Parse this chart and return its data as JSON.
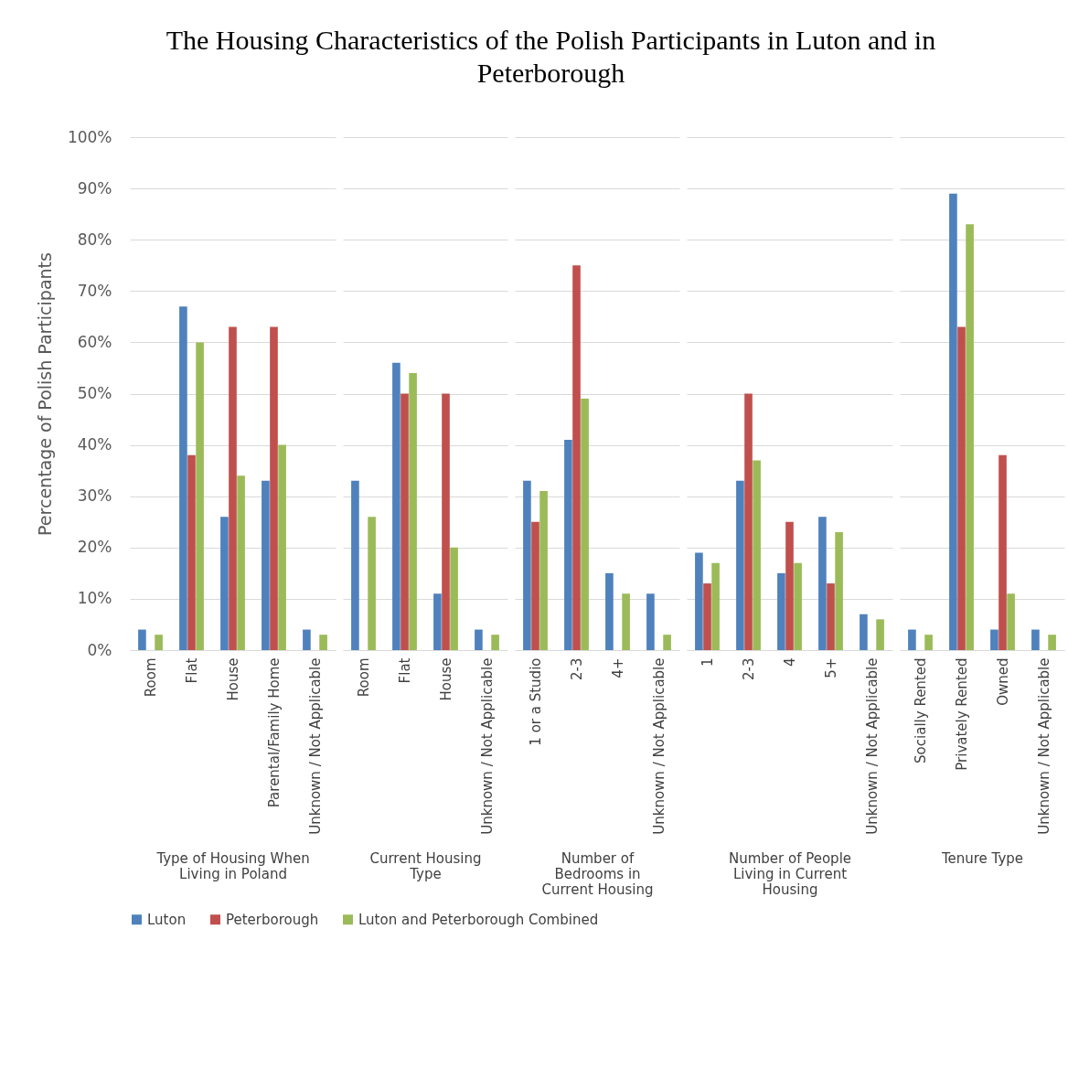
{
  "chart_data": [
    {
      "type": "bar",
      "title": "The Housing Characteristics of the Polish Participants in Luton and in Peterborough",
      "xlabel": "Type of Housing When Living in Poland",
      "ylabel": "Percentage of Polish Participants",
      "categories": [
        "Room",
        "Flat",
        "House",
        "Parental/Family Home",
        "Unknown / Not Applicable"
      ],
      "series": [
        {
          "name": "Luton",
          "color": "#4f81bd",
          "values": [
            4,
            67,
            26,
            33,
            4
          ]
        },
        {
          "name": "Peterborough",
          "color": "#c0504d",
          "values": [
            0,
            38,
            63,
            63,
            0
          ]
        },
        {
          "name": "Luton and Peterborough Combined",
          "color": "#9bbb59",
          "values": [
            3,
            60,
            34,
            40,
            3
          ]
        }
      ],
      "ylim": [
        0,
        100
      ],
      "yticks": [
        {
          "value": 0,
          "label": "0%"
        },
        {
          "value": 10,
          "label": "10%"
        },
        {
          "value": 20,
          "label": "20%"
        },
        {
          "value": 30,
          "label": "30%"
        },
        {
          "value": 40,
          "label": "40%"
        },
        {
          "value": 50,
          "label": "50%"
        },
        {
          "value": 60,
          "label": "60%"
        },
        {
          "value": 70,
          "label": "70%"
        },
        {
          "value": 80,
          "label": "80%"
        },
        {
          "value": 90,
          "label": "90%"
        },
        {
          "value": 100,
          "label": "100%"
        }
      ],
      "grid": "y",
      "legend": "bottom"
    },
    {
      "type": "bar",
      "xlabel": "Current Housing Type",
      "categories": [
        "Room",
        "Flat",
        "House",
        "Unknown / Not Applicable"
      ],
      "series": [
        {
          "color": "#4f81bd",
          "values": [
            33,
            56,
            11,
            4
          ]
        },
        {
          "color": "#c0504d",
          "values": [
            0,
            50,
            50,
            0
          ]
        },
        {
          "color": "#9bbb59",
          "values": [
            26,
            54,
            20,
            3
          ]
        }
      ],
      "ylim": [
        0,
        100
      ],
      "grid": "y",
      "tick_labels": "x"
    },
    {
      "type": "bar",
      "xlabel": "Number of Bedrooms in Current Housing",
      "categories": [
        "1 or a Studio",
        "2-3",
        "4+",
        "Unknown / Not Applicable"
      ],
      "series": [
        {
          "color": "#4f81bd",
          "values": [
            33,
            41,
            15,
            11
          ]
        },
        {
          "color": "#c0504d",
          "values": [
            25,
            75,
            0,
            0
          ]
        },
        {
          "color": "#9bbb59",
          "values": [
            31,
            49,
            11,
            3
          ]
        }
      ],
      "ylim": [
        0,
        100
      ],
      "grid": "y",
      "tick_labels": "x"
    },
    {
      "type": "bar",
      "xlabel": "Number of People Living in Current Housing",
      "categories": [
        "1",
        "2-3",
        "4",
        "5+",
        "Unknown / Not Applicable"
      ],
      "series": [
        {
          "color": "#4f81bd",
          "values": [
            19,
            33,
            15,
            26,
            7
          ]
        },
        {
          "color": "#c0504d",
          "values": [
            13,
            50,
            25,
            13,
            0
          ]
        },
        {
          "color": "#9bbb59",
          "values": [
            17,
            37,
            17,
            23,
            6
          ]
        }
      ],
      "ylim": [
        0,
        100
      ],
      "grid": "y",
      "tick_labels": "x"
    },
    {
      "type": "bar",
      "xlabel": "Tenure Type",
      "categories": [
        "Socially Rented",
        "Privately Rented",
        "Owned",
        "Unknown / Not Applicable"
      ],
      "series": [
        {
          "color": "#4f81bd",
          "values": [
            4,
            89,
            4,
            4
          ]
        },
        {
          "color": "#c0504d",
          "values": [
            0,
            63,
            38,
            0
          ]
        },
        {
          "color": "#9bbb59",
          "values": [
            3,
            83,
            11,
            3
          ]
        }
      ],
      "ylim": [
        0,
        100
      ],
      "grid": "y",
      "tick_labels": "x"
    }
  ]
}
